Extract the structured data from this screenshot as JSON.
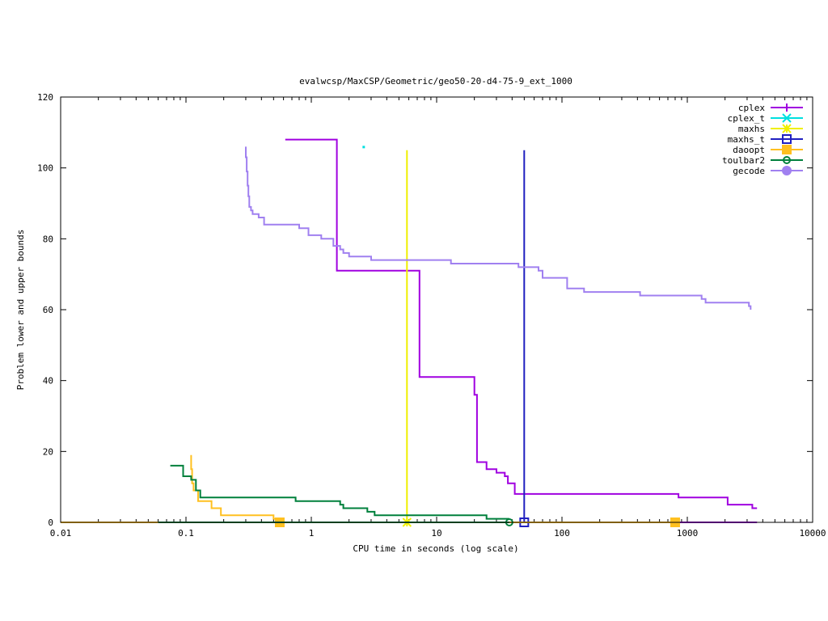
{
  "chart_data": {
    "type": "line",
    "title": "evalwcsp/MaxCSP/Geometric/geo50-20-d4-75-9_ext_1000",
    "xlabel": "CPU time in seconds (log scale)",
    "ylabel": "Problem lower and upper bounds",
    "xscale": "log",
    "xlim": [
      0.01,
      10000
    ],
    "ylim": [
      0,
      120
    ],
    "x_ticks": [
      0.01,
      0.1,
      1,
      10,
      100,
      1000,
      10000
    ],
    "x_tick_labels": [
      "0.01",
      "0.1",
      "1",
      "10",
      "100",
      "1000",
      "10000"
    ],
    "y_ticks": [
      0,
      20,
      40,
      60,
      80,
      100,
      120
    ],
    "y_tick_labels": [
      "0",
      "20",
      "40",
      "60",
      "80",
      "100",
      "120"
    ],
    "grid": false,
    "legend_position": "top-right",
    "series": [
      {
        "name": "cplex",
        "color": "#a000e0",
        "marker": "plus",
        "step": true,
        "points": [
          [
            0.62,
            108
          ],
          [
            1.6,
            108
          ],
          [
            1.6,
            71
          ],
          [
            7.3,
            71
          ],
          [
            7.3,
            41
          ],
          [
            8.8,
            41
          ],
          [
            8.8,
            41
          ],
          [
            20,
            41
          ],
          [
            20,
            36
          ],
          [
            21,
            36
          ],
          [
            21,
            17
          ],
          [
            25,
            17
          ],
          [
            25,
            15
          ],
          [
            30,
            15
          ],
          [
            30,
            14
          ],
          [
            35,
            14
          ],
          [
            35,
            13
          ],
          [
            37,
            13
          ],
          [
            37,
            11
          ],
          [
            42,
            11
          ],
          [
            42,
            8
          ],
          [
            850,
            8
          ],
          [
            850,
            7
          ],
          [
            2100,
            7
          ],
          [
            2100,
            5
          ],
          [
            3300,
            5
          ],
          [
            3300,
            4
          ],
          [
            3600,
            4
          ]
        ],
        "lower_bound": [
          [
            850,
            0
          ],
          [
            3600,
            0
          ]
        ]
      },
      {
        "name": "cplex_t",
        "color": "#00e0e0",
        "marker": "x",
        "points": [
          [
            2.6,
            106
          ]
        ]
      },
      {
        "name": "maxhs",
        "color": "#f0f000",
        "marker": "star",
        "points": [
          [
            5.8,
            105
          ],
          [
            5.8,
            0
          ]
        ]
      },
      {
        "name": "maxhs_t",
        "color": "#2020c0",
        "marker": "square",
        "points": [
          [
            50,
            105
          ],
          [
            50,
            0
          ]
        ]
      },
      {
        "name": "daoopt",
        "color": "#ffc020",
        "marker": "filled-square",
        "points": [
          [
            0.11,
            19
          ],
          [
            0.11,
            15
          ],
          [
            0.112,
            15
          ],
          [
            0.112,
            11
          ],
          [
            0.115,
            11
          ],
          [
            0.115,
            9
          ],
          [
            0.125,
            9
          ],
          [
            0.125,
            6
          ],
          [
            0.16,
            6
          ],
          [
            0.16,
            4
          ],
          [
            0.19,
            4
          ],
          [
            0.19,
            2
          ],
          [
            0.5,
            2
          ],
          [
            0.5,
            1
          ],
          [
            0.56,
            1
          ]
        ],
        "lower_bound": [
          [
            0.01,
            0
          ],
          [
            0.56,
            0
          ],
          [
            0.56,
            0
          ],
          [
            800,
            0
          ]
        ],
        "marker_points": [
          [
            0.56,
            0
          ],
          [
            800,
            0
          ]
        ]
      },
      {
        "name": "toulbar2",
        "color": "#00803c",
        "marker": "circle",
        "points": [
          [
            0.075,
            16
          ],
          [
            0.095,
            16
          ],
          [
            0.095,
            13
          ],
          [
            0.11,
            13
          ],
          [
            0.11,
            12
          ],
          [
            0.12,
            12
          ],
          [
            0.12,
            9
          ],
          [
            0.13,
            9
          ],
          [
            0.13,
            7
          ],
          [
            0.75,
            7
          ],
          [
            0.75,
            6
          ],
          [
            1.7,
            6
          ],
          [
            1.7,
            5
          ],
          [
            1.8,
            5
          ],
          [
            1.8,
            4
          ],
          [
            2.8,
            4
          ],
          [
            2.8,
            3
          ],
          [
            3.2,
            3
          ],
          [
            3.2,
            2
          ],
          [
            25,
            2
          ],
          [
            25,
            1
          ],
          [
            38,
            1
          ]
        ],
        "lower_bound": [
          [
            0.06,
            0
          ],
          [
            38,
            0
          ]
        ],
        "marker_points": [
          [
            38,
            0
          ]
        ]
      },
      {
        "name": "gecode",
        "color": "#a080f0",
        "marker": "filled-circle",
        "step": true,
        "points": [
          [
            0.3,
            106
          ],
          [
            0.3,
            103
          ],
          [
            0.305,
            103
          ],
          [
            0.305,
            99
          ],
          [
            0.31,
            99
          ],
          [
            0.31,
            95
          ],
          [
            0.315,
            95
          ],
          [
            0.315,
            92
          ],
          [
            0.32,
            92
          ],
          [
            0.32,
            89
          ],
          [
            0.33,
            89
          ],
          [
            0.33,
            88
          ],
          [
            0.34,
            88
          ],
          [
            0.34,
            87
          ],
          [
            0.38,
            87
          ],
          [
            0.38,
            86
          ],
          [
            0.42,
            86
          ],
          [
            0.42,
            84
          ],
          [
            0.8,
            84
          ],
          [
            0.8,
            83
          ],
          [
            0.95,
            83
          ],
          [
            0.95,
            81
          ],
          [
            1.2,
            81
          ],
          [
            1.2,
            80
          ],
          [
            1.5,
            80
          ],
          [
            1.5,
            78
          ],
          [
            1.7,
            78
          ],
          [
            1.7,
            77
          ],
          [
            1.8,
            77
          ],
          [
            1.8,
            76
          ],
          [
            2.0,
            76
          ],
          [
            2.0,
            75
          ],
          [
            3.0,
            75
          ],
          [
            3.0,
            74
          ],
          [
            13,
            74
          ],
          [
            13,
            73
          ],
          [
            45,
            73
          ],
          [
            45,
            72
          ],
          [
            65,
            72
          ],
          [
            65,
            71
          ],
          [
            70,
            71
          ],
          [
            70,
            69
          ],
          [
            110,
            69
          ],
          [
            110,
            66
          ],
          [
            150,
            66
          ],
          [
            150,
            65
          ],
          [
            420,
            65
          ],
          [
            420,
            64
          ],
          [
            1300,
            64
          ],
          [
            1300,
            63
          ],
          [
            1400,
            63
          ],
          [
            1400,
            62
          ],
          [
            3100,
            62
          ],
          [
            3100,
            61
          ],
          [
            3200,
            61
          ],
          [
            3200,
            60
          ]
        ]
      }
    ]
  }
}
